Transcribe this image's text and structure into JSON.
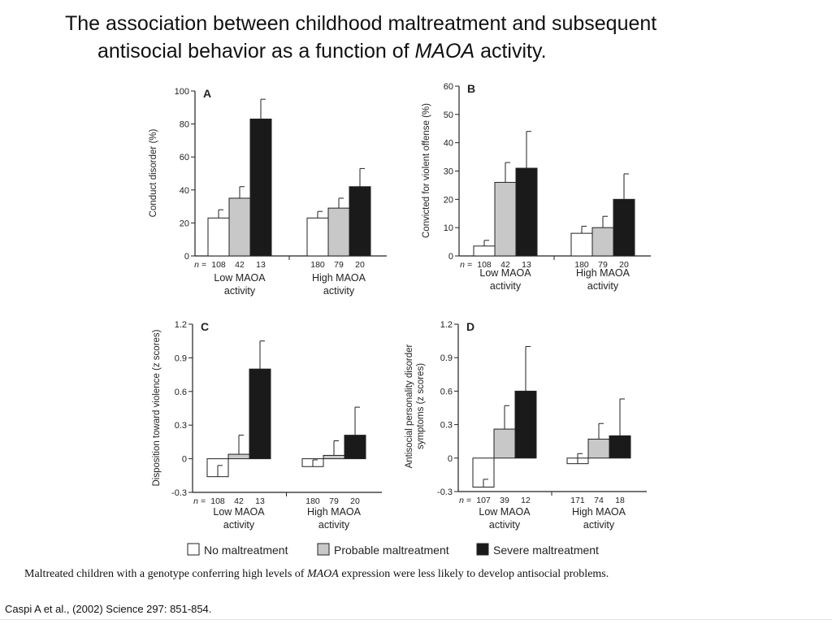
{
  "title": {
    "line1": "The association between childhood maltreatment and subsequent",
    "line2_pre": "antisocial behavior as a function of ",
    "line2_em": "MAOA",
    "line2_post": " activity."
  },
  "legend": {
    "items": [
      {
        "label": "No maltreatment",
        "color": "#ffffff"
      },
      {
        "label": "Probable maltreatment",
        "color": "#c8c8c8"
      },
      {
        "label": "Severe maltreatment",
        "color": "#1a1a1a"
      }
    ]
  },
  "caption": {
    "pre": "Maltreated children with a genotype conferring high levels of ",
    "em": "MAOA",
    "post": " expression were less likely to develop antisocial problems."
  },
  "citation": "Caspi A et al., (2002) Science 297: 851-854.",
  "chart_data": [
    {
      "type": "bar",
      "panel": "A",
      "ylabel": "Conduct disorder (%)",
      "ylim": [
        0,
        100
      ],
      "yticks": [
        0,
        20,
        40,
        60,
        80,
        100
      ],
      "ytick_labels": [
        "0",
        "20",
        "40",
        "60",
        "80",
        "100"
      ],
      "categories": [
        "Low MAOA activity",
        "High MAOA activity"
      ],
      "series": [
        {
          "name": "No maltreatment",
          "values": [
            23,
            23
          ],
          "errors": [
            5,
            4
          ],
          "n": [
            "108",
            "180"
          ]
        },
        {
          "name": "Probable maltreatment",
          "values": [
            35,
            29
          ],
          "errors": [
            7,
            6
          ],
          "n": [
            "42",
            "79"
          ]
        },
        {
          "name": "Severe maltreatment",
          "values": [
            83,
            42
          ],
          "errors": [
            12,
            11
          ],
          "n": [
            "13",
            "20"
          ]
        }
      ]
    },
    {
      "type": "bar",
      "panel": "B",
      "ylabel": "Convicted for violent offense (%)",
      "ylim": [
        0,
        60
      ],
      "yticks": [
        0,
        10,
        20,
        30,
        40,
        50,
        60
      ],
      "ytick_labels": [
        "0",
        "10",
        "20",
        "30",
        "40",
        "50",
        "60"
      ],
      "categories": [
        "Low MAOA activity",
        "High MAOA activity"
      ],
      "series": [
        {
          "name": "No maltreatment",
          "values": [
            3.5,
            8
          ],
          "errors": [
            2,
            2.5
          ],
          "n": [
            "108",
            "180"
          ]
        },
        {
          "name": "Probable maltreatment",
          "values": [
            26,
            10
          ],
          "errors": [
            7,
            4
          ],
          "n": [
            "42",
            "79"
          ]
        },
        {
          "name": "Severe maltreatment",
          "values": [
            31,
            20
          ],
          "errors": [
            13,
            9
          ],
          "n": [
            "13",
            "20"
          ]
        }
      ]
    },
    {
      "type": "bar",
      "panel": "C",
      "ylabel": "Disposition toward violence (z scores)",
      "ylim": [
        -0.3,
        1.2
      ],
      "yticks": [
        -0.3,
        0,
        0.3,
        0.6,
        0.9,
        1.2
      ],
      "ytick_labels": [
        "-0.3",
        "0",
        "0.3",
        "0.6",
        "0.9",
        "1.2"
      ],
      "categories": [
        "Low MAOA activity",
        "High MAOA activity"
      ],
      "series": [
        {
          "name": "No maltreatment",
          "values": [
            -0.16,
            -0.07
          ],
          "errors": [
            0.1,
            0.06
          ],
          "n": [
            "108",
            "180"
          ]
        },
        {
          "name": "Probable maltreatment",
          "values": [
            0.04,
            0.03
          ],
          "errors": [
            0.17,
            0.13
          ],
          "n": [
            "42",
            "79"
          ]
        },
        {
          "name": "Severe maltreatment",
          "values": [
            0.8,
            0.21
          ],
          "errors": [
            0.25,
            0.25
          ],
          "n": [
            "13",
            "20"
          ]
        }
      ]
    },
    {
      "type": "bar",
      "panel": "D",
      "ylabel_lines": [
        "Antisocial personality disorder",
        "symptoms (z scores)"
      ],
      "ylim": [
        -0.3,
        1.2
      ],
      "yticks": [
        -0.3,
        0,
        0.3,
        0.6,
        0.9,
        1.2
      ],
      "ytick_labels": [
        "-0.3",
        "0",
        "0.3",
        "0.6",
        "0.9",
        "1.2"
      ],
      "categories": [
        "Low MAOA activity",
        "High MAOA activity"
      ],
      "series": [
        {
          "name": "No maltreatment",
          "values": [
            -0.26,
            -0.05
          ],
          "errors": [
            0.07,
            0.09
          ],
          "n": [
            "107",
            "171"
          ]
        },
        {
          "name": "Probable maltreatment",
          "values": [
            0.26,
            0.17
          ],
          "errors": [
            0.21,
            0.14
          ],
          "n": [
            "39",
            "74"
          ]
        },
        {
          "name": "Severe maltreatment",
          "values": [
            0.6,
            0.2
          ],
          "errors": [
            0.4,
            0.33
          ],
          "n": [
            "12",
            "18"
          ]
        }
      ]
    }
  ]
}
